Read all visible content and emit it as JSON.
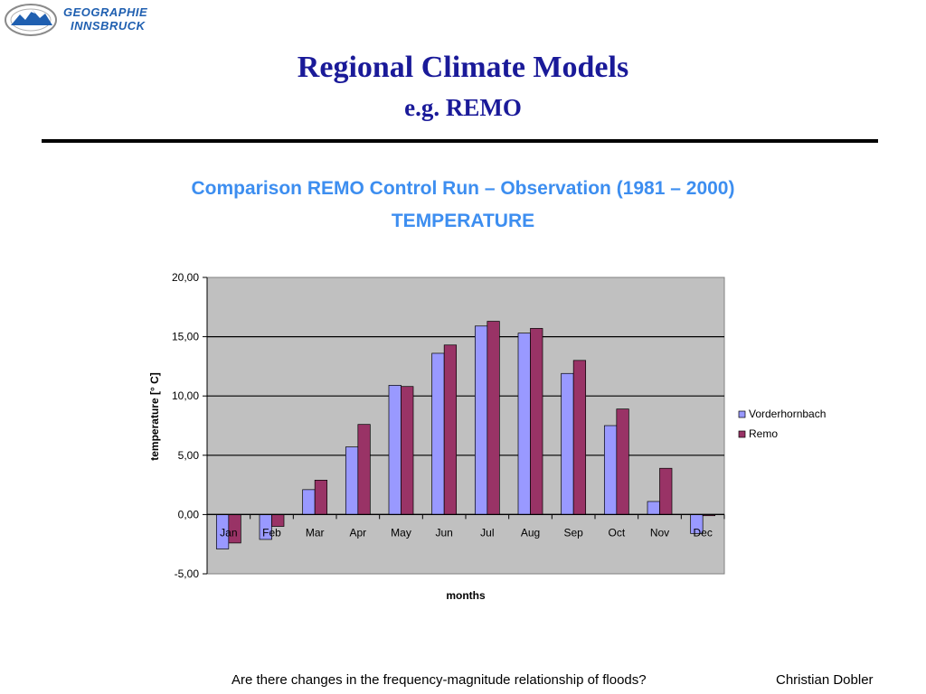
{
  "logo": {
    "line1": "GEOGRAPHIE",
    "line2": "INNSBRUCK"
  },
  "slide": {
    "title": "Regional Climate Models",
    "subtitle": "e.g. REMO",
    "chart_heading": "Comparison REMO Control Run – Observation (1981 – 2000)",
    "chart_subheading": "TEMPERATURE"
  },
  "footer": {
    "question": "Are there changes in the frequency-magnitude relationship of floods?",
    "author": "Christian Dobler"
  },
  "colors": {
    "title": "#1a1a99",
    "heading": "#3d8ef0",
    "plot_bg": "#c0c0c0",
    "series_vorderhornbach": "#9999ff",
    "series_remo": "#993366"
  },
  "chart_data": {
    "type": "bar",
    "categories": [
      "Jan",
      "Feb",
      "Mar",
      "Apr",
      "May",
      "Jun",
      "Jul",
      "Aug",
      "Sep",
      "Oct",
      "Nov",
      "Dec"
    ],
    "series": [
      {
        "name": "Vorderhornbach",
        "color": "#9999ff",
        "values": [
          -2.9,
          -2.1,
          2.1,
          5.7,
          10.9,
          13.6,
          15.9,
          15.3,
          11.9,
          7.5,
          1.1,
          -1.6
        ]
      },
      {
        "name": "Remo",
        "color": "#993366",
        "values": [
          -2.4,
          -1.0,
          2.9,
          7.6,
          10.8,
          14.3,
          16.3,
          15.7,
          13.0,
          8.9,
          3.9,
          -0.1
        ]
      }
    ],
    "ylim": [
      -5,
      20
    ],
    "yticks": [
      "20,00",
      "15,00",
      "10,00",
      "5,00",
      "0,00",
      "-5,00"
    ],
    "ylabel": "temperature [° C]",
    "xlabel": "months",
    "grid": true,
    "legend": "right"
  }
}
